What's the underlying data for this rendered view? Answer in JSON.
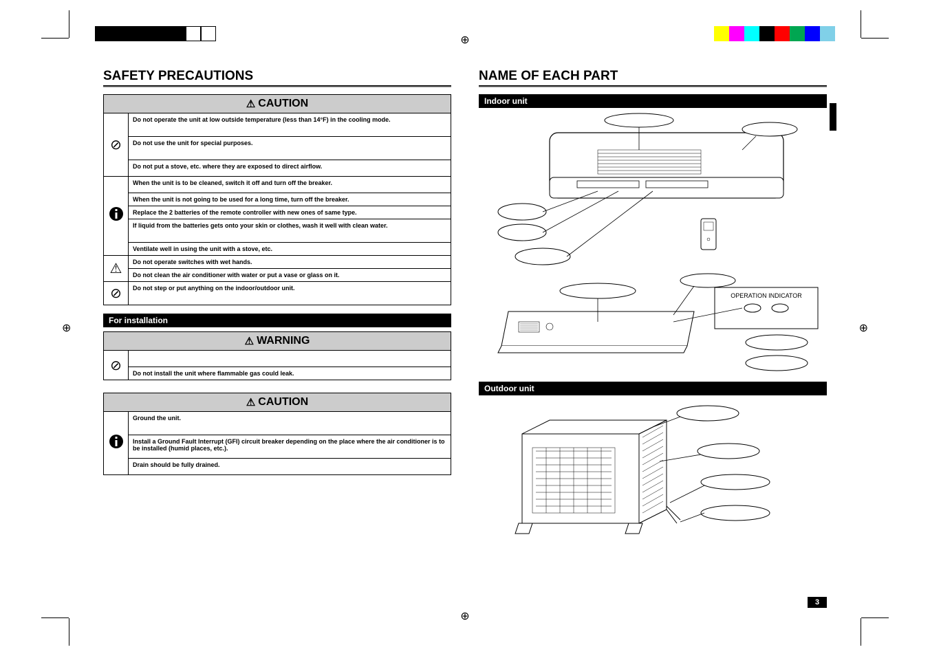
{
  "print_bars": {
    "top_left_colors": [
      "#000000",
      "#000000",
      "#000000",
      "#000000",
      "#000000",
      "#000000",
      "#ffffff",
      "#ffffff"
    ],
    "top_right_colors": [
      "#ffff00",
      "#ff00ff",
      "#00ffff",
      "#000000",
      "#ff0000",
      "#00a651",
      "#0000ff",
      "#80d0e8"
    ]
  },
  "left": {
    "title": "SAFETY PRECAUTIONS",
    "caution1": {
      "header": "CAUTION",
      "r1": "Do not operate the unit at low outside temperature (less than 14°F) in the cooling mode.",
      "r2": "Do not use the unit for special purposes.",
      "r3": "Do not put a stove, etc. where they are exposed to direct airflow.",
      "r4": "When the unit is to be cleaned, switch it off and turn off the breaker.",
      "r5": "When the unit is not going to be used for a long time, turn off the breaker.",
      "r6": "Replace the 2 batteries of the remote controller with new ones of same type.",
      "r7": "If liquid from the batteries gets onto your skin or clothes, wash it well with clean water.",
      "r8": "Ventilate well in using the unit with a stove, etc.",
      "r9": "Do not operate switches with wet hands.",
      "r10": "Do not clean the air conditioner with water or put a vase or glass on it.",
      "r11": "Do not step or put anything on the indoor/outdoor unit."
    },
    "install_header": "For installation",
    "warning": {
      "header": "WARNING",
      "r1": "",
      "r2": "Do not install the unit where flammable gas could leak."
    },
    "caution2": {
      "header": "CAUTION",
      "r1": "Ground the unit.",
      "r2": "Install a Ground Fault Interrupt (GFI) circuit breaker depending on the place where the air conditioner is to be installed (humid places, etc.).",
      "r3": "Drain should be fully drained."
    }
  },
  "right": {
    "title": "NAME OF EACH PART",
    "indoor": "Indoor unit",
    "outdoor": "Outdoor unit",
    "panel_label": "OPERATION INDICATOR"
  },
  "page_number": "3"
}
